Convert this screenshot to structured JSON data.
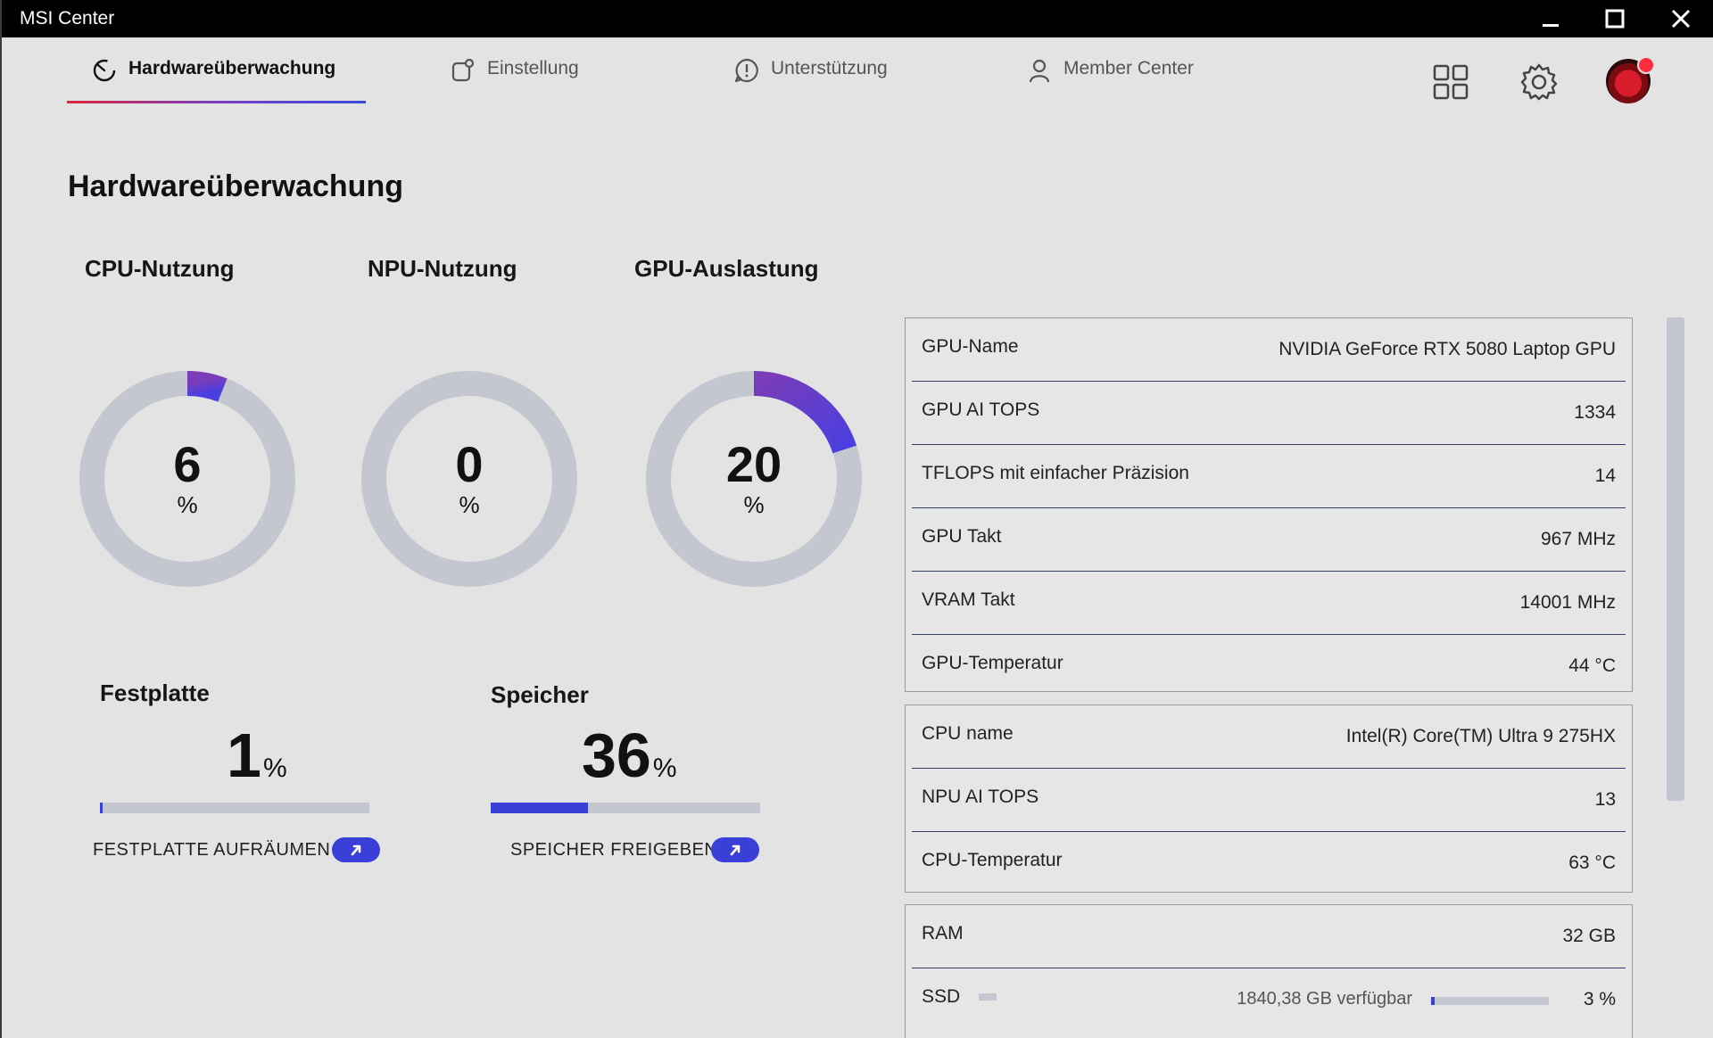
{
  "window": {
    "title": "MSI Center"
  },
  "nav": {
    "tabs": [
      {
        "label": "Hardwareüberwachung",
        "icon": "gauge-icon",
        "active": true
      },
      {
        "label": "Einstellung",
        "icon": "settings-tab-icon",
        "active": false
      },
      {
        "label": "Unterstützung",
        "icon": "support-icon",
        "active": false
      },
      {
        "label": "Member Center",
        "icon": "person-icon",
        "active": false
      }
    ],
    "right_icons": [
      "apps-grid-icon",
      "gear-icon",
      "avatar"
    ]
  },
  "page": {
    "title": "Hardwareüberwachung"
  },
  "gauges": [
    {
      "label": "CPU-Nutzung",
      "value": 6,
      "unit": "%"
    },
    {
      "label": "NPU-Nutzung",
      "value": 0,
      "unit": "%"
    },
    {
      "label": "GPU-Auslastung",
      "value": 20,
      "unit": "%"
    }
  ],
  "meters": [
    {
      "label": "Festplatte",
      "value": 1,
      "unit": "%",
      "action": "FESTPLATTE AUFRÄUMEN"
    },
    {
      "label": "Speicher",
      "value": 36,
      "unit": "%",
      "action": "SPEICHER FREIGEBEN"
    }
  ],
  "gpu_panel": [
    {
      "key": "GPU-Name",
      "value": "NVIDIA GeForce RTX 5080 Laptop GPU"
    },
    {
      "key": "GPU AI TOPS",
      "value": "1334"
    },
    {
      "key": "TFLOPS mit einfacher Präzision",
      "value": "14"
    },
    {
      "key": "GPU Takt",
      "value": "967 MHz"
    },
    {
      "key": "VRAM Takt",
      "value": "14001 MHz"
    },
    {
      "key": "GPU-Temperatur",
      "value": "44 °C"
    }
  ],
  "cpu_panel": [
    {
      "key": "CPU name",
      "value": "Intel(R) Core(TM) Ultra 9 275HX"
    },
    {
      "key": "NPU AI TOPS",
      "value": "13"
    },
    {
      "key": "CPU-Temperatur",
      "value": "63 °C"
    }
  ],
  "mem_panel": {
    "ram": {
      "key": "RAM",
      "value": "32 GB"
    },
    "ssd": {
      "key": "SSD",
      "available": "1840,38 GB verfügbar",
      "value": "3 %",
      "fraction": 0.03
    }
  },
  "colors": {
    "accent": "#3a3fd8",
    "gauge_start": "#7a3cb8",
    "gauge_end": "#4a3fe0",
    "track": "#c4c7d0"
  }
}
